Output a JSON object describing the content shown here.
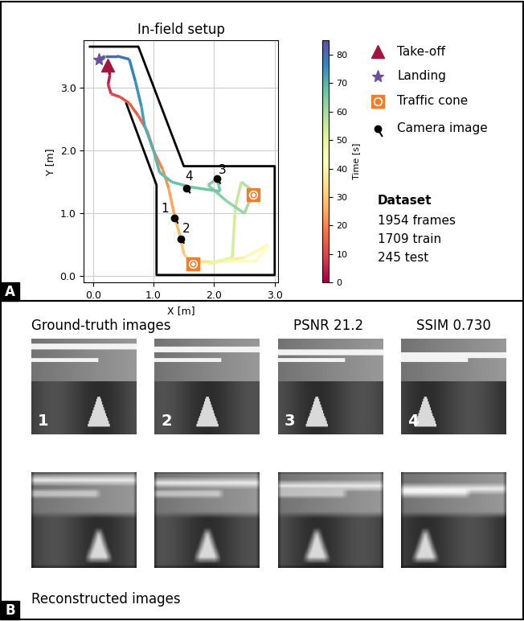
{
  "chart_data": {
    "type": "line",
    "title": "In-field setup",
    "x_label": "X [m]",
    "y_label": "Y [m]",
    "xlim": [
      -0.15,
      3.05
    ],
    "ylim": [
      -0.1,
      3.75
    ],
    "xticks": [
      {
        "value": 0,
        "label": "0.0"
      },
      {
        "value": 1,
        "label": "1.0"
      },
      {
        "value": 2,
        "label": "2.0"
      },
      {
        "value": 3,
        "label": "3.0"
      }
    ],
    "yticks": [
      {
        "value": 0,
        "label": "0.0"
      },
      {
        "value": 1,
        "label": "1.0"
      },
      {
        "value": 2,
        "label": "2.0"
      },
      {
        "value": 3,
        "label": "3.0"
      }
    ],
    "grid": true,
    "trajectory": {
      "x": [
        0.25,
        0.28,
        0.25,
        0.3,
        0.45,
        0.6,
        0.75,
        0.9,
        1.0,
        1.15,
        1.25,
        1.35,
        1.45,
        1.5,
        1.6,
        2.0,
        2.5,
        2.9,
        2.7,
        2.2,
        1.9,
        2.3,
        2.35,
        2.45,
        2.65,
        2.5,
        2.2,
        1.9,
        2.05,
        2.1,
        1.6,
        1.3,
        1.1,
        1.0,
        0.85,
        0.8,
        0.7,
        0.6,
        0.4,
        0.2,
        0.1
      ],
      "y": [
        3.35,
        3.2,
        3.05,
        2.9,
        2.85,
        2.75,
        2.55,
        2.3,
        2.0,
        1.7,
        1.4,
        0.95,
        0.6,
        0.35,
        0.25,
        0.22,
        0.3,
        0.5,
        0.25,
        0.25,
        0.2,
        0.3,
        1.1,
        1.5,
        1.35,
        1.0,
        1.2,
        1.45,
        1.55,
        1.35,
        1.42,
        1.5,
        1.65,
        2.0,
        2.4,
        2.7,
        3.1,
        3.45,
        3.5,
        3.5,
        3.45
      ],
      "time": [
        0,
        3,
        6,
        9,
        11,
        13,
        15,
        17,
        19,
        21,
        23,
        26,
        29,
        31,
        33,
        36,
        39,
        42,
        44,
        46,
        48,
        52,
        55,
        57,
        59,
        61,
        63,
        64,
        65,
        66,
        67,
        68,
        69,
        70,
        72,
        74,
        76,
        78,
        80,
        82,
        83
      ]
    },
    "colorbar": {
      "label": "Time [s]",
      "range": [
        0,
        85
      ],
      "ticks": [
        0,
        10,
        20,
        30,
        40,
        50,
        60,
        70,
        80
      ]
    },
    "boundary": {
      "x": [
        -0.05,
        0.75,
        1.5,
        3.0,
        3.0,
        1.05,
        1.05,
        0.55
      ],
      "y": [
        3.65,
        3.65,
        1.75,
        1.75,
        0.02,
        0.02,
        1.45,
        2.75
      ]
    },
    "markers": [
      {
        "name": "Take-off",
        "x": [
          0.25
        ],
        "y": [
          3.35
        ],
        "color": "#a3153f",
        "marker": "triangle"
      },
      {
        "name": "Landing",
        "x": [
          0.1
        ],
        "y": [
          3.45
        ],
        "color": "#6a4fa3",
        "marker": "star"
      },
      {
        "name": "Traffic cone",
        "x": [
          2.65,
          1.65
        ],
        "y": [
          1.3,
          0.2
        ],
        "color": "#f07d2a",
        "marker": "square"
      },
      {
        "name": "Camera image",
        "x": [
          1.35,
          1.45,
          2.05,
          1.55
        ],
        "y": [
          0.92,
          0.6,
          1.55,
          1.4
        ],
        "labels": [
          "1",
          "2",
          "3",
          "4"
        ],
        "color": "#000000",
        "marker": "pin"
      }
    ],
    "dataset": {
      "title": "Dataset",
      "lines": [
        "1954 frames",
        "1709 train",
        "245 test"
      ]
    }
  },
  "panel_labels": [
    "A",
    "B"
  ],
  "panel_b": {
    "top_label": "Ground-truth images",
    "bottom_label": "Reconstructed images",
    "metrics": [
      "PSNR 21.2",
      "SSIM 0.730"
    ],
    "image_numbers": [
      "1",
      "2",
      "3",
      "4"
    ]
  }
}
